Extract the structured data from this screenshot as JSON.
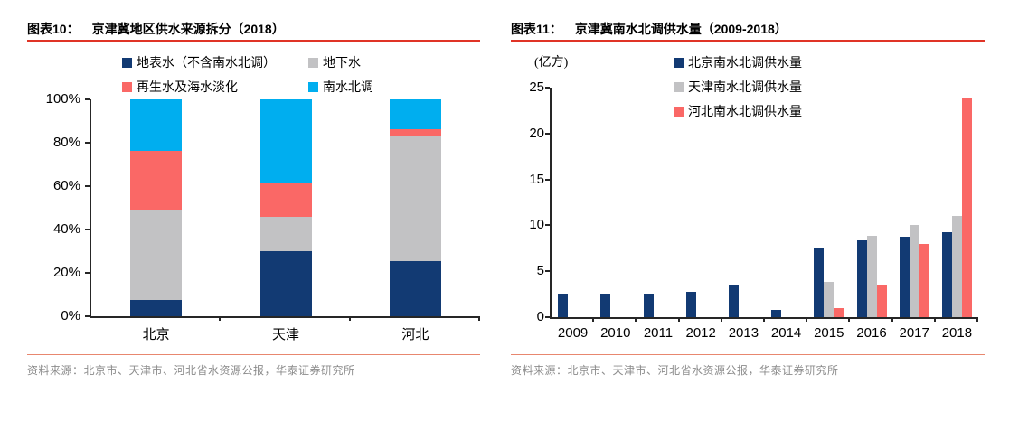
{
  "page": {
    "background": "#ffffff"
  },
  "panels": [
    {
      "label": "图表10：",
      "title": "京津冀地区供水来源拆分（2018）",
      "source": "资料来源：北京市、天津市、河北省水资源公报，华泰证券研究所"
    },
    {
      "label": "图表11：",
      "title": "京津冀南水北调供水量（2009-2018）",
      "source": "资料来源：北京市、天津市、河北省水资源公报，华泰证券研究所"
    }
  ],
  "colors": {
    "title_underline": "#E03426",
    "source_divider": "#E8876F",
    "source_text": "#8C8C8C",
    "axis": "#262626",
    "navy": "#123A73",
    "gray": "#C2C2C4",
    "salmon": "#FA6866",
    "cyan": "#00AEEF"
  },
  "chart_data": [
    {
      "type": "bar",
      "stacked": true,
      "title": "京津冀地区供水来源拆分（2018）",
      "categories": [
        "北京",
        "天津",
        "河北"
      ],
      "series": [
        {
          "name": "地表水（不含南水北调）",
          "color": "#123A73",
          "values": [
            7.7,
            30.0,
            25.5
          ]
        },
        {
          "name": "地下水",
          "color": "#C2C2C4",
          "values": [
            41.3,
            15.7,
            57.6
          ]
        },
        {
          "name": "再生水及海水淡化",
          "color": "#FA6866",
          "values": [
            27.3,
            15.9,
            3.3
          ]
        },
        {
          "name": "南水北调",
          "color": "#00AEEF",
          "values": [
            23.7,
            38.4,
            13.6
          ]
        }
      ],
      "y_ticks": [
        "0%",
        "20%",
        "40%",
        "60%",
        "80%",
        "100%"
      ],
      "ylim": [
        0,
        100
      ],
      "legend_position": "top",
      "grid": false
    },
    {
      "type": "bar",
      "stacked": false,
      "title": "京津冀南水北调供水量（2009-2018）",
      "unit": "(亿方)",
      "categories": [
        "2009",
        "2010",
        "2011",
        "2012",
        "2013",
        "2014",
        "2015",
        "2016",
        "2017",
        "2018"
      ],
      "series": [
        {
          "name": "北京南水北调供水量",
          "color": "#123A73",
          "values": [
            2.6,
            2.6,
            2.6,
            2.8,
            3.5,
            0.8,
            7.6,
            8.4,
            8.8,
            9.3
          ]
        },
        {
          "name": "天津南水北调供水量",
          "color": "#C2C2C4",
          "values": [
            0,
            0,
            0,
            0,
            0,
            0,
            3.8,
            8.9,
            10.0,
            11.0
          ]
        },
        {
          "name": "河北南水北调供水量",
          "color": "#FA6866",
          "values": [
            0,
            0,
            0,
            0,
            0,
            0,
            1.0,
            3.5,
            8.0,
            23.9
          ]
        }
      ],
      "y_ticks": [
        0,
        5,
        10,
        15,
        20,
        25
      ],
      "ylim": [
        0,
        25
      ],
      "legend_position": "top",
      "grid": false
    }
  ]
}
